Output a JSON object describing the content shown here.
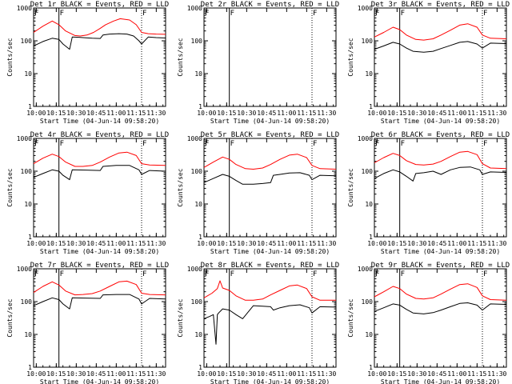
{
  "colors": {
    "events": "#000000",
    "lld": "#ff0000",
    "axis": "#000000",
    "background": "#ffffff"
  },
  "chart_data": [
    {
      "type": "line",
      "title": "Det 1r BLACK = Events, RED = LLD",
      "xlabel": "Start Time (04-Jun-14 09:58:20)",
      "ylabel": "Counts/sec",
      "y_scale": "log",
      "ylim": [
        1,
        1000
      ],
      "y_ticks": [
        "1",
        "10",
        "100",
        "1000"
      ],
      "x_ticks": [
        "10:00",
        "10:15",
        "10:30",
        "10:45",
        "11:00",
        "11:15",
        "11:30"
      ],
      "xlim": [
        "09:58",
        "11:37"
      ],
      "markers": [
        {
          "label": "F",
          "x": "10:17",
          "style": "solid"
        },
        {
          "label": "F",
          "x": "11:19",
          "style": "dotted"
        }
      ],
      "grid": false,
      "legend": "none",
      "series": [
        {
          "color": "red",
          "x": [
            "09:58",
            "10:05",
            "10:12",
            "10:17",
            "10:22",
            "10:29",
            "10:33",
            "10:38",
            "10:43",
            "10:48",
            "10:52",
            "10:58",
            "11:03",
            "11:10",
            "11:15",
            "11:19",
            "11:24",
            "11:30",
            "11:37"
          ],
          "values": [
            180,
            280,
            400,
            310,
            200,
            145,
            140,
            150,
            180,
            240,
            310,
            400,
            470,
            430,
            310,
            180,
            165,
            160,
            158
          ]
        },
        {
          "color": "black",
          "x": [
            "09:58",
            "10:05",
            "10:12",
            "10:17",
            "10:20",
            "10:25",
            "10:27",
            "10:32",
            "10:37",
            "10:42",
            "10:48",
            "10:50",
            "10:55",
            "11:02",
            "11:08",
            "11:13",
            "11:17",
            "11:19",
            "11:24",
            "11:30",
            "11:37"
          ],
          "values": [
            70,
            95,
            120,
            110,
            80,
            55,
            130,
            128,
            124,
            120,
            118,
            150,
            160,
            165,
            160,
            140,
            100,
            80,
            130,
            125,
            122
          ]
        }
      ]
    },
    {
      "type": "line",
      "title": "Det 2r BLACK = Events, RED = LLD",
      "xlabel": "Start Time (04-Jun-14 09:58:20)",
      "ylabel": "Counts/sec",
      "y_scale": "log",
      "ylim": [
        1,
        1000
      ],
      "y_ticks": [
        "1",
        "10",
        "100",
        "1000"
      ],
      "x_ticks": [
        "10:00",
        "10:15",
        "10:30",
        "10:45",
        "11:00",
        "11:15",
        "11:30"
      ],
      "xlim": [
        "09:58",
        "11:37"
      ],
      "markers": [
        {
          "label": "F",
          "x": "10:17",
          "style": "solid"
        },
        {
          "label": "F",
          "x": "11:19",
          "style": "dotted"
        }
      ],
      "grid": false,
      "legend": "none",
      "series": []
    },
    {
      "type": "line",
      "title": "Det 3r BLACK = Events, RED = LLD",
      "xlabel": "Start Time (04-Jun-14 09:58:20)",
      "ylabel": "Counts/sec",
      "y_scale": "log",
      "ylim": [
        1,
        1000
      ],
      "y_ticks": [
        "1",
        "10",
        "100",
        "1000"
      ],
      "x_ticks": [
        "10:00",
        "10:15",
        "10:30",
        "10:45",
        "11:00",
        "11:15",
        "11:30"
      ],
      "xlim": [
        "09:58",
        "11:37"
      ],
      "markers": [
        {
          "label": "F",
          "x": "10:17",
          "style": "solid"
        },
        {
          "label": "F",
          "x": "11:19",
          "style": "dotted"
        }
      ],
      "grid": false,
      "legend": "none",
      "series": [
        {
          "color": "red",
          "x": [
            "09:58",
            "10:05",
            "10:12",
            "10:17",
            "10:22",
            "10:29",
            "10:35",
            "10:42",
            "10:48",
            "10:55",
            "11:02",
            "11:08",
            "11:15",
            "11:19",
            "11:25",
            "11:37"
          ],
          "values": [
            130,
            180,
            260,
            220,
            150,
            110,
            105,
            115,
            150,
            210,
            300,
            330,
            260,
            150,
            120,
            115
          ]
        },
        {
          "color": "black",
          "x": [
            "09:58",
            "10:05",
            "10:12",
            "10:17",
            "10:22",
            "10:27",
            "10:35",
            "10:42",
            "10:48",
            "10:55",
            "11:02",
            "11:08",
            "11:15",
            "11:19",
            "11:25",
            "11:37"
          ],
          "values": [
            55,
            70,
            90,
            80,
            60,
            48,
            45,
            48,
            58,
            72,
            90,
            95,
            80,
            60,
            85,
            82
          ]
        }
      ]
    },
    {
      "type": "line",
      "title": "Det 4r BLACK = Events, RED = LLD",
      "xlabel": "Start Time (04-Jun-14 09:58:20)",
      "ylabel": "Counts/sec",
      "y_scale": "log",
      "ylim": [
        1,
        1000
      ],
      "y_ticks": [
        "1",
        "10",
        "100",
        "1000"
      ],
      "x_ticks": [
        "10:00",
        "10:15",
        "10:30",
        "10:45",
        "11:00",
        "11:15",
        "11:30"
      ],
      "xlim": [
        "09:58",
        "11:37"
      ],
      "markers": [
        {
          "label": "F",
          "x": "10:17",
          "style": "solid"
        },
        {
          "label": "F",
          "x": "11:19",
          "style": "dotted"
        }
      ],
      "grid": false,
      "legend": "none",
      "series": [
        {
          "color": "red",
          "x": [
            "09:58",
            "10:05",
            "10:12",
            "10:17",
            "10:22",
            "10:29",
            "10:35",
            "10:42",
            "10:48",
            "10:55",
            "11:02",
            "11:08",
            "11:15",
            "11:19",
            "11:25",
            "11:37"
          ],
          "values": [
            170,
            250,
            330,
            280,
            190,
            140,
            140,
            150,
            190,
            270,
            360,
            380,
            300,
            170,
            155,
            150
          ]
        },
        {
          "color": "black",
          "x": [
            "09:58",
            "10:05",
            "10:12",
            "10:17",
            "10:20",
            "10:25",
            "10:27",
            "10:37",
            "10:48",
            "10:50",
            "11:00",
            "11:10",
            "11:17",
            "11:19",
            "11:25",
            "11:37"
          ],
          "values": [
            65,
            85,
            110,
            100,
            75,
            55,
            110,
            108,
            105,
            140,
            150,
            150,
            110,
            80,
            105,
            100
          ]
        }
      ]
    },
    {
      "type": "line",
      "title": "Det 5r BLACK = Events, RED = LLD",
      "xlabel": "Start Time (04-Jun-14 09:58:20)",
      "ylabel": "Counts/sec",
      "y_scale": "log",
      "ylim": [
        1,
        1000
      ],
      "y_ticks": [
        "1",
        "10",
        "100",
        "1000"
      ],
      "x_ticks": [
        "10:00",
        "10:15",
        "10:30",
        "10:45",
        "11:00",
        "11:15",
        "11:30"
      ],
      "xlim": [
        "09:58",
        "11:37"
      ],
      "markers": [
        {
          "label": "F",
          "x": "10:17",
          "style": "solid"
        },
        {
          "label": "F",
          "x": "11:19",
          "style": "dotted"
        }
      ],
      "grid": false,
      "legend": "none",
      "series": [
        {
          "color": "red",
          "x": [
            "09:58",
            "10:05",
            "10:12",
            "10:17",
            "10:22",
            "10:29",
            "10:35",
            "10:42",
            "10:48",
            "10:55",
            "11:02",
            "11:08",
            "11:15",
            "11:19",
            "11:25",
            "11:37"
          ],
          "values": [
            130,
            190,
            270,
            230,
            160,
            120,
            115,
            125,
            160,
            230,
            310,
            330,
            260,
            150,
            120,
            115
          ]
        },
        {
          "color": "black",
          "x": [
            "09:58",
            "10:05",
            "10:12",
            "10:17",
            "10:22",
            "10:27",
            "10:35",
            "10:42",
            "10:48",
            "10:50",
            "10:55",
            "11:02",
            "11:10",
            "11:17",
            "11:19",
            "11:25",
            "11:37"
          ],
          "values": [
            45,
            60,
            80,
            70,
            52,
            40,
            40,
            42,
            45,
            75,
            80,
            88,
            90,
            75,
            55,
            75,
            72
          ]
        }
      ]
    },
    {
      "type": "line",
      "title": "Det 6r BLACK = Events, RED = LLD",
      "xlabel": "Start Time (04-Jun-14 09:58:20)",
      "ylabel": "Counts/sec",
      "y_scale": "log",
      "ylim": [
        1,
        1000
      ],
      "y_ticks": [
        "1",
        "10",
        "100",
        "1000"
      ],
      "x_ticks": [
        "10:00",
        "10:15",
        "10:30",
        "10:45",
        "11:00",
        "11:15",
        "11:30"
      ],
      "xlim": [
        "09:58",
        "11:37"
      ],
      "markers": [
        {
          "label": "F",
          "x": "10:17",
          "style": "solid"
        },
        {
          "label": "F",
          "x": "11:19",
          "style": "dotted"
        }
      ],
      "grid": false,
      "legend": "none",
      "series": [
        {
          "color": "red",
          "x": [
            "09:58",
            "10:05",
            "10:12",
            "10:17",
            "10:22",
            "10:29",
            "10:35",
            "10:42",
            "10:48",
            "10:55",
            "11:02",
            "11:08",
            "11:15",
            "11:19",
            "11:25",
            "11:37"
          ],
          "values": [
            180,
            260,
            350,
            300,
            210,
            160,
            155,
            165,
            200,
            280,
            380,
            400,
            320,
            170,
            125,
            120
          ]
        },
        {
          "color": "black",
          "x": [
            "09:58",
            "10:05",
            "10:12",
            "10:17",
            "10:22",
            "10:27",
            "10:29",
            "10:35",
            "10:42",
            "10:48",
            "10:55",
            "11:02",
            "11:10",
            "11:17",
            "11:19",
            "11:25",
            "11:37"
          ],
          "values": [
            60,
            85,
            110,
            95,
            70,
            50,
            85,
            90,
            100,
            80,
            110,
            130,
            135,
            110,
            80,
            95,
            92
          ]
        }
      ]
    },
    {
      "type": "line",
      "title": "Det 7r BLACK = Events, RED = LLD",
      "xlabel": "Start Time (04-Jun-14 09:58:20)",
      "ylabel": "Counts/sec",
      "y_scale": "log",
      "ylim": [
        1,
        1000
      ],
      "y_ticks": [
        "1",
        "10",
        "100",
        "1000"
      ],
      "x_ticks": [
        "10:00",
        "10:15",
        "10:30",
        "10:45",
        "11:00",
        "11:15",
        "11:30"
      ],
      "xlim": [
        "09:58",
        "11:37"
      ],
      "markers": [
        {
          "label": "F",
          "x": "10:17",
          "style": "solid"
        },
        {
          "label": "F",
          "x": "11:19",
          "style": "dotted"
        }
      ],
      "grid": false,
      "legend": "none",
      "series": [
        {
          "color": "red",
          "x": [
            "09:58",
            "10:05",
            "10:12",
            "10:17",
            "10:22",
            "10:29",
            "10:35",
            "10:42",
            "10:48",
            "10:55",
            "11:02",
            "11:08",
            "11:15",
            "11:19",
            "11:25",
            "11:37"
          ],
          "values": [
            190,
            290,
            400,
            320,
            210,
            160,
            165,
            175,
            210,
            290,
            400,
            420,
            330,
            180,
            165,
            160
          ]
        },
        {
          "color": "black",
          "x": [
            "09:58",
            "10:05",
            "10:12",
            "10:17",
            "10:20",
            "10:25",
            "10:27",
            "10:37",
            "10:48",
            "10:50",
            "11:00",
            "11:10",
            "11:17",
            "11:19",
            "11:25",
            "11:37"
          ],
          "values": [
            75,
            100,
            130,
            115,
            85,
            60,
            130,
            128,
            125,
            160,
            165,
            165,
            120,
            85,
            125,
            120
          ]
        }
      ]
    },
    {
      "type": "line",
      "title": "Det 8r BLACK = Events, RED = LLD",
      "xlabel": "Start Time (04-Jun-14 09:58:20)",
      "ylabel": "Counts/sec",
      "y_scale": "log",
      "ylim": [
        1,
        1000
      ],
      "y_ticks": [
        "1",
        "10",
        "100",
        "1000"
      ],
      "x_ticks": [
        "10:00",
        "10:15",
        "10:30",
        "10:45",
        "11:00",
        "11:15",
        "11:30"
      ],
      "xlim": [
        "09:58",
        "11:37"
      ],
      "markers": [
        {
          "label": "F",
          "x": "10:17",
          "style": "solid"
        },
        {
          "label": "F",
          "x": "11:19",
          "style": "dotted"
        }
      ],
      "grid": false,
      "legend": "none",
      "series": [
        {
          "color": "red",
          "x": [
            "09:58",
            "10:04",
            "10:08",
            "10:10",
            "10:12",
            "10:17",
            "10:22",
            "10:29",
            "10:35",
            "10:42",
            "10:48",
            "10:55",
            "11:02",
            "11:08",
            "11:15",
            "11:19",
            "11:25",
            "11:37"
          ],
          "values": [
            130,
            180,
            250,
            430,
            260,
            220,
            150,
            110,
            110,
            120,
            160,
            220,
            300,
            320,
            250,
            140,
            110,
            110
          ]
        },
        {
          "color": "black",
          "x": [
            "09:58",
            "10:02",
            "10:05",
            "10:07",
            "10:08",
            "10:09",
            "10:12",
            "10:17",
            "10:22",
            "10:27",
            "10:35",
            "10:42",
            "10:48",
            "10:50",
            "10:55",
            "11:02",
            "11:10",
            "11:17",
            "11:19",
            "11:25",
            "11:37"
          ],
          "values": [
            30,
            35,
            40,
            5,
            40,
            45,
            60,
            55,
            40,
            30,
            75,
            72,
            70,
            55,
            65,
            75,
            80,
            65,
            45,
            70,
            68
          ]
        }
      ]
    },
    {
      "type": "line",
      "title": "Det 9r BLACK = Events, RED = LLD",
      "xlabel": "Start Time (04-Jun-14 09:58:20)",
      "ylabel": "Counts/sec",
      "y_scale": "log",
      "ylim": [
        1,
        1000
      ],
      "y_ticks": [
        "1",
        "10",
        "100",
        "1000"
      ],
      "x_ticks": [
        "10:00",
        "10:15",
        "10:30",
        "10:45",
        "11:00",
        "11:15",
        "11:30"
      ],
      "xlim": [
        "09:58",
        "11:37"
      ],
      "markers": [
        {
          "label": "F",
          "x": "10:17",
          "style": "solid"
        },
        {
          "label": "F",
          "x": "11:19",
          "style": "dotted"
        }
      ],
      "grid": false,
      "legend": "none",
      "series": [
        {
          "color": "red",
          "x": [
            "09:58",
            "10:05",
            "10:12",
            "10:17",
            "10:22",
            "10:29",
            "10:35",
            "10:42",
            "10:48",
            "10:55",
            "11:02",
            "11:08",
            "11:15",
            "11:19",
            "11:25",
            "11:37"
          ],
          "values": [
            140,
            200,
            290,
            250,
            170,
            125,
            120,
            130,
            170,
            240,
            330,
            350,
            270,
            150,
            115,
            110
          ]
        },
        {
          "color": "black",
          "x": [
            "09:58",
            "10:05",
            "10:12",
            "10:17",
            "10:22",
            "10:27",
            "10:35",
            "10:42",
            "10:48",
            "10:55",
            "11:02",
            "11:08",
            "11:15",
            "11:19",
            "11:25",
            "11:37"
          ],
          "values": [
            50,
            65,
            85,
            78,
            58,
            45,
            42,
            46,
            55,
            70,
            88,
            92,
            78,
            55,
            85,
            82
          ]
        }
      ]
    }
  ]
}
